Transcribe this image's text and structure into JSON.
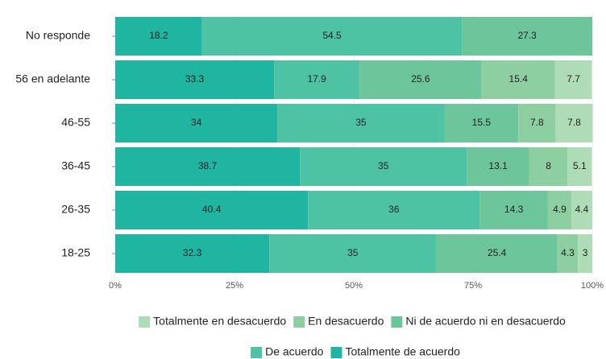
{
  "chart_data": {
    "type": "stacked-barh",
    "categories": [
      "No responde",
      "56 en adelante",
      "46-55",
      "36-45",
      "26-35",
      "18-25"
    ],
    "series": [
      {
        "name": "Totalmente de acuerdo",
        "color": "#1fb5a0",
        "values": [
          18.2,
          33.3,
          34,
          38.7,
          40.4,
          32.3
        ]
      },
      {
        "name": "De acuerdo",
        "color": "#4ec3a3",
        "values": [
          54.5,
          17.9,
          35,
          35,
          36,
          35
        ]
      },
      {
        "name": "Ni de acuerdo ni en desacuerdo",
        "color": "#6dc69b",
        "values": [
          27.3,
          25.6,
          15.5,
          13.1,
          14.3,
          25.4
        ]
      },
      {
        "name": "En desacuerdo",
        "color": "#8dcfa0",
        "values": [
          null,
          15.4,
          7.8,
          8,
          4.9,
          4.3
        ]
      },
      {
        "name": "Totalmente en desacuerdo",
        "color": "#aedcb6",
        "values": [
          null,
          7.7,
          7.8,
          5.1,
          4.4,
          3
        ]
      }
    ],
    "xlim": [
      0,
      100
    ],
    "xticks": [
      {
        "value": 0,
        "label": "0%"
      },
      {
        "value": 25,
        "label": "25%"
      },
      {
        "value": 50,
        "label": "50%"
      },
      {
        "value": 75,
        "label": "75%"
      },
      {
        "value": 100,
        "label": "100%"
      }
    ],
    "grid": true
  }
}
